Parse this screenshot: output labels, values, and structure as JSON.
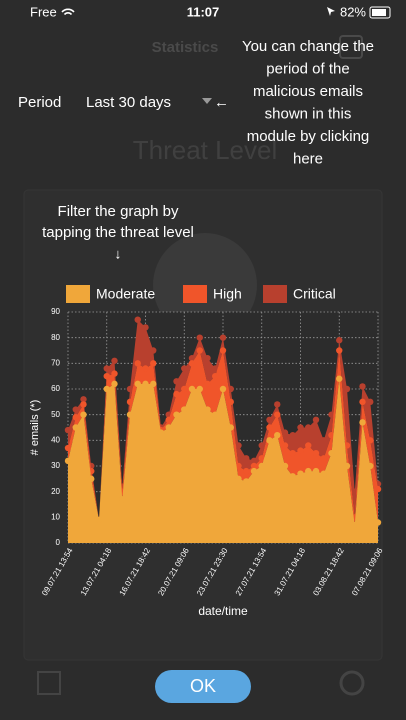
{
  "status_bar": {
    "carrier": "Free",
    "time": "11:07",
    "battery": "82%"
  },
  "background": {
    "tab_title": "Statistics",
    "section_title": "Threat Level"
  },
  "period": {
    "label": "Period",
    "value": "Last 30 days"
  },
  "hints": {
    "period_hint": [
      "You can change the",
      "period of the",
      "malicious emails",
      "shown in this",
      "module by clicking",
      "here"
    ],
    "period_arrow": "←",
    "filter_hint": [
      "Filter the graph by",
      "tapping the threat level"
    ],
    "filter_arrow": "↓"
  },
  "button": "OK",
  "chart_data": {
    "type": "stacked_area",
    "y_label": "# emails (*)",
    "x_label": "date/time",
    "categories": [
      "09.07.21 13:54",
      null,
      null,
      null,
      null,
      "13.07.21 04:18",
      null,
      null,
      null,
      null,
      "16.07.21 18:42",
      null,
      null,
      null,
      null,
      "20.07.21 09:06",
      null,
      null,
      null,
      null,
      "23.07.21 23:30",
      null,
      null,
      null,
      null,
      "27.07.21 13:54",
      null,
      null,
      null,
      null,
      "31.07.21 04:18",
      null,
      null,
      null,
      null,
      "03.08.21 18:42",
      null,
      null,
      null,
      null,
      "07.08.21 09:06"
    ],
    "series": [
      {
        "name": "Moderate",
        "color": "#f0a73a",
        "values": [
          32,
          45,
          50,
          25,
          9,
          60,
          62,
          17,
          50,
          62,
          62,
          62,
          43,
          45,
          50,
          52,
          60,
          60,
          52,
          50,
          60,
          45,
          25,
          24,
          28,
          30,
          40,
          42,
          30,
          26,
          27,
          28,
          28,
          27,
          35,
          64,
          30,
          7,
          47,
          30,
          8
        ]
      },
      {
        "name": "High",
        "color": "#f0552a",
        "values": [
          5,
          4,
          4,
          3,
          0,
          5,
          4,
          3,
          5,
          8,
          6,
          8,
          1,
          3,
          8,
          8,
          10,
          15,
          10,
          15,
          15,
          10,
          5,
          4,
          2,
          3,
          5,
          8,
          8,
          9,
          9,
          10,
          7,
          6,
          7,
          11,
          8,
          3,
          8,
          10,
          13
        ]
      },
      {
        "name": "Critical",
        "color": "#b8402e",
        "values": [
          7,
          3,
          2,
          2,
          0,
          3,
          5,
          2,
          5,
          17,
          16,
          5,
          1,
          2,
          5,
          8,
          2,
          5,
          10,
          3,
          5,
          5,
          8,
          5,
          2,
          5,
          3,
          4,
          5,
          7,
          9,
          7,
          13,
          7,
          8,
          4,
          22,
          10,
          6,
          15,
          2
        ]
      }
    ],
    "ylim": [
      0,
      90
    ],
    "yticks": [
      0,
      10,
      20,
      30,
      40,
      50,
      60,
      70,
      80,
      90
    ],
    "grid": true
  }
}
